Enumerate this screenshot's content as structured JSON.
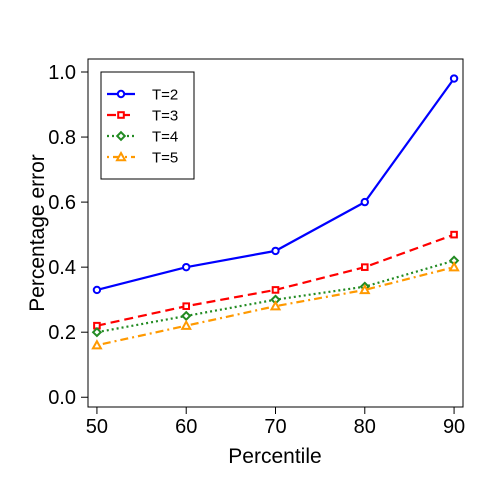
{
  "chart_data": {
    "type": "line",
    "title": "",
    "xlabel": "Percentile",
    "ylabel": "Percentage error",
    "x": [
      50,
      60,
      70,
      80,
      90
    ],
    "xticks": [
      "50",
      "60",
      "70",
      "80",
      "90"
    ],
    "yticks": [
      "0.0",
      "0.2",
      "0.4",
      "0.6",
      "0.8",
      "1.0"
    ],
    "xlim": [
      49,
      91
    ],
    "ylim": [
      -0.03,
      1.04
    ],
    "grid": false,
    "legend_position": "top-left",
    "series": [
      {
        "name": "T=2",
        "values": [
          0.33,
          0.4,
          0.45,
          0.6,
          0.98
        ],
        "color": "#0000ff",
        "marker": "circle",
        "dash": "solid"
      },
      {
        "name": "T=3",
        "values": [
          0.22,
          0.28,
          0.33,
          0.4,
          0.5
        ],
        "color": "#ff0000",
        "marker": "square",
        "dash": "dashed"
      },
      {
        "name": "T=4",
        "values": [
          0.2,
          0.25,
          0.3,
          0.34,
          0.42
        ],
        "color": "#228b22",
        "marker": "diamond",
        "dash": "dotted"
      },
      {
        "name": "T=5",
        "values": [
          0.16,
          0.22,
          0.28,
          0.33,
          0.4
        ],
        "color": "#ff9900",
        "marker": "triangle",
        "dash": "dotdash"
      }
    ]
  }
}
